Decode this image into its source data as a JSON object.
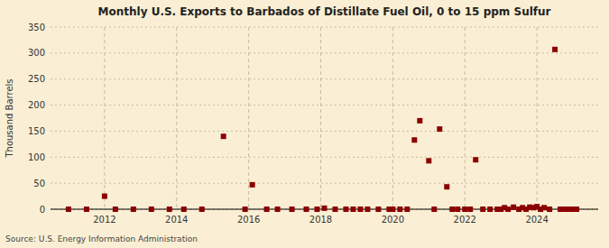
{
  "chart_data": {
    "type": "scatter",
    "title": "Monthly U.S. Exports to Barbados of Distillate Fuel Oil, 0 to 15 ppm Sulfur",
    "y_label": "Thousand Barrels",
    "annotations": [
      "Source: U.S. Energy Information Administration"
    ],
    "color": "#8b0000",
    "marker": "square",
    "grid": true,
    "xlim": [
      2010.5,
      2025.7
    ],
    "xticks": [
      2012,
      2014,
      2016,
      2018,
      2020,
      2022,
      2024
    ],
    "ylim": [
      0,
      350
    ],
    "yticks": [
      0,
      50,
      100,
      150,
      200,
      250,
      300,
      350
    ],
    "x": [
      2011.0,
      2011.5,
      2012.0,
      2012.3,
      2012.8,
      2013.3,
      2013.8,
      2014.2,
      2014.7,
      2015.3,
      2015.9,
      2016.1,
      2016.5,
      2016.8,
      2017.2,
      2017.6,
      2017.9,
      2018.1,
      2018.4,
      2018.7,
      2018.9,
      2019.1,
      2019.3,
      2019.6,
      2019.9,
      2020.0,
      2020.2,
      2020.4,
      2020.6,
      2020.75,
      2021.0,
      2021.15,
      2021.3,
      2021.5,
      2021.65,
      2021.8,
      2022.0,
      2022.15,
      2022.3,
      2022.5,
      2022.7,
      2022.9,
      2023.0,
      2023.1,
      2023.2,
      2023.35,
      2023.5,
      2023.6,
      2023.7,
      2023.8,
      2023.9,
      2024.0,
      2024.1,
      2024.2,
      2024.35,
      2024.5,
      2024.65,
      2024.8,
      2024.95,
      2025.1
    ],
    "values": [
      0,
      0,
      25,
      0,
      0,
      0,
      0,
      0,
      0,
      140,
      0,
      47,
      0,
      0,
      0,
      0,
      0,
      2,
      0,
      0,
      0,
      0,
      0,
      0,
      0,
      0,
      0,
      0,
      133,
      170,
      93,
      0,
      154,
      43,
      0,
      0,
      0,
      0,
      95,
      0,
      0,
      0,
      0,
      3,
      0,
      4,
      0,
      3,
      0,
      4,
      3,
      5,
      0,
      3,
      0,
      307,
      0,
      0,
      0,
      0
    ]
  }
}
